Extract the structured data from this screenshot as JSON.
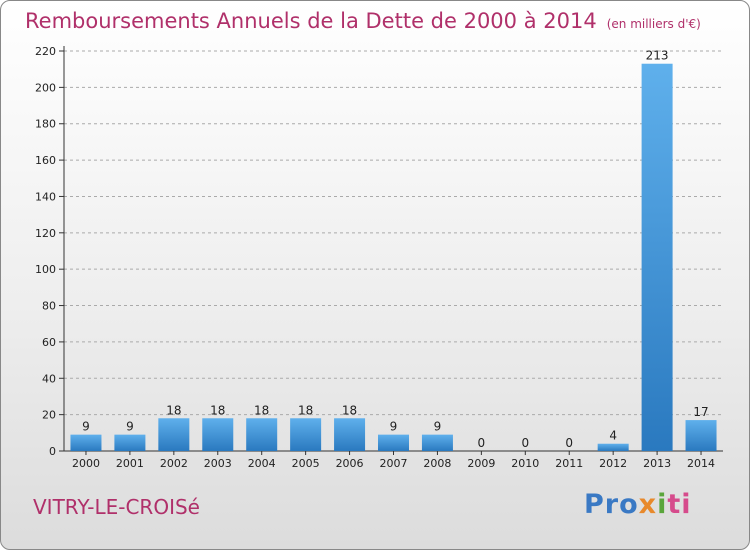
{
  "title": "Remboursements Annuels de la Dette de 2000 à 2014",
  "subtitle": "(en milliers d'€)",
  "place_name": "VITRY-LE-CROISé",
  "brand": {
    "part1": "Pro",
    "part2": "x",
    "part3": "i",
    "part4": "ti"
  },
  "colors": {
    "title": "#b0306a",
    "bar_light": "#5fb0ec",
    "bar_dark": "#2a79bf",
    "grid": "#aaaaaa"
  },
  "chart_data": {
    "type": "bar",
    "title": "Remboursements Annuels de la Dette de 2000 à 2014",
    "subtitle": "(en milliers d'€)",
    "categories": [
      "2000",
      "2001",
      "2002",
      "2003",
      "2004",
      "2005",
      "2006",
      "2007",
      "2008",
      "2009",
      "2010",
      "2011",
      "2012",
      "2013",
      "2014"
    ],
    "values": [
      9,
      9,
      18,
      18,
      18,
      18,
      18,
      9,
      9,
      0,
      0,
      0,
      4,
      213,
      17
    ],
    "ylim": [
      0,
      220
    ],
    "yticks": [
      0,
      20,
      40,
      60,
      80,
      100,
      120,
      140,
      160,
      180,
      200,
      220
    ],
    "grid": "horizontal dashed",
    "xlabel": "",
    "ylabel": ""
  }
}
